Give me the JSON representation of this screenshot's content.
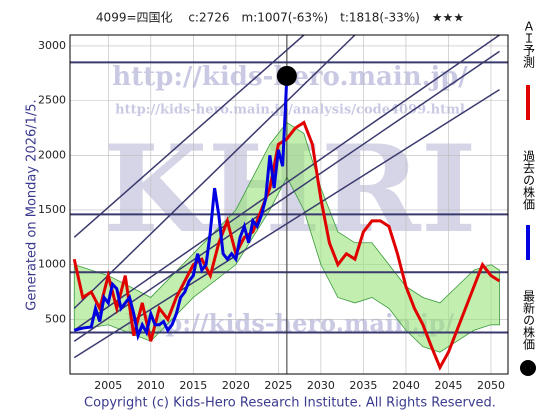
{
  "chart_data": {
    "type": "line",
    "title": "4099=四国化　 c:2726　m:1007(-63%)　t:1818(-33%)　★★★",
    "side_note": "Generated on Monday 2026/1/5.",
    "footer": "Copyright (c) Kids-Hero Research Institute. All Rights Reserved.",
    "watermarks": [
      "http://kids-hero.main.jp/",
      "http://kids-hero.main.jp/analysis/code4099.html",
      "KHRI",
      "http://kids-hero.main.jp/"
    ],
    "xlim": [
      2000.5,
      2052
    ],
    "xticks": [
      2005,
      2010,
      2015,
      2020,
      2025,
      2030,
      2035,
      2040,
      2045,
      2050
    ],
    "ylim": [
      0,
      3100
    ],
    "yticks": [
      500,
      1000,
      1500,
      2000,
      2500,
      3000
    ],
    "grid": true,
    "band": {
      "color": "#99e27a",
      "x": [
        2001,
        2005,
        2010,
        2015,
        2020,
        2024,
        2026,
        2028,
        2030,
        2032,
        2034,
        2036,
        2038,
        2040,
        2042,
        2044,
        2046,
        2048,
        2050,
        2051
      ],
      "upper": [
        1000,
        900,
        700,
        1100,
        1500,
        2100,
        2300,
        2200,
        1700,
        1300,
        1200,
        1200,
        1000,
        800,
        700,
        650,
        800,
        950,
        1000,
        950
      ],
      "lower": [
        400,
        450,
        300,
        700,
        1000,
        1500,
        1800,
        1500,
        1000,
        700,
        650,
        700,
        600,
        400,
        250,
        200,
        300,
        400,
        450,
        450
      ]
    },
    "hlines": {
      "color": "#3a3a6e",
      "values": [
        2850,
        1460,
        930,
        380
      ]
    },
    "vline": 2026,
    "trend_lines": [
      {
        "x": [
          2001,
          2028
        ],
        "values": [
          1250,
          3100
        ]
      },
      {
        "x": [
          2001,
          2034
        ],
        "values": [
          600,
          3100
        ]
      },
      {
        "x": [
          2001,
          2051
        ],
        "values": [
          400,
          3100
        ]
      },
      {
        "x": [
          2001,
          2051
        ],
        "values": [
          300,
          2950
        ]
      },
      {
        "x": [
          2001,
          2051
        ],
        "values": [
          150,
          2600
        ]
      }
    ],
    "series": [
      {
        "name": "ＡＩ予測",
        "color": "#e00000",
        "x": [
          2001,
          2002,
          2003,
          2004,
          2005,
          2006,
          2007,
          2008,
          2009,
          2010,
          2011,
          2012,
          2013,
          2014,
          2015,
          2016,
          2017,
          2018,
          2019,
          2020,
          2021,
          2022,
          2023,
          2024,
          2025,
          2026,
          2027,
          2028,
          2029,
          2030,
          2031,
          2032,
          2033,
          2034,
          2035,
          2036,
          2037,
          2038,
          2039,
          2040,
          2041,
          2042,
          2043,
          2044,
          2045,
          2046,
          2047,
          2048,
          2049,
          2050,
          2051
        ],
        "values": [
          1050,
          700,
          750,
          600,
          900,
          600,
          900,
          350,
          650,
          300,
          600,
          500,
          700,
          850,
          1000,
          1050,
          900,
          1200,
          1400,
          1100,
          1250,
          1300,
          1500,
          1700,
          2100,
          2150,
          2250,
          2300,
          2100,
          1600,
          1200,
          1000,
          1100,
          1050,
          1300,
          1400,
          1400,
          1350,
          1100,
          800,
          600,
          450,
          250,
          60,
          200,
          400,
          600,
          800,
          1000,
          900,
          850
        ]
      },
      {
        "name": "過去の株価",
        "color": "#0000e0",
        "x": [
          2001,
          2002,
          2003,
          2003.5,
          2004,
          2004.5,
          2005,
          2005.5,
          2006,
          2006.5,
          2007,
          2007.5,
          2008,
          2008.5,
          2009,
          2009.5,
          2010,
          2010.5,
          2011,
          2011.5,
          2012,
          2012.5,
          2013,
          2013.5,
          2014,
          2014.5,
          2015,
          2015.5,
          2016,
          2016.5,
          2017,
          2017.5,
          2018,
          2018.5,
          2019,
          2019.5,
          2020,
          2020.5,
          2021,
          2021.5,
          2022,
          2022.5,
          2023,
          2023.5,
          2024,
          2024.5,
          2025,
          2025.5,
          2026
        ],
        "values": [
          400,
          420,
          430,
          600,
          480,
          700,
          650,
          820,
          780,
          600,
          650,
          700,
          550,
          350,
          450,
          380,
          550,
          450,
          450,
          480,
          400,
          450,
          550,
          700,
          750,
          850,
          900,
          1100,
          950,
          1000,
          1300,
          1700,
          1450,
          1100,
          1050,
          1100,
          1050,
          1250,
          1350,
          1200,
          1400,
          1350,
          1450,
          1600,
          2000,
          1700,
          2050,
          1900,
          2726
        ]
      },
      {
        "name": "最新の株価",
        "color": "#000000",
        "x": [
          2026
        ],
        "values": [
          2726
        ]
      }
    ]
  }
}
